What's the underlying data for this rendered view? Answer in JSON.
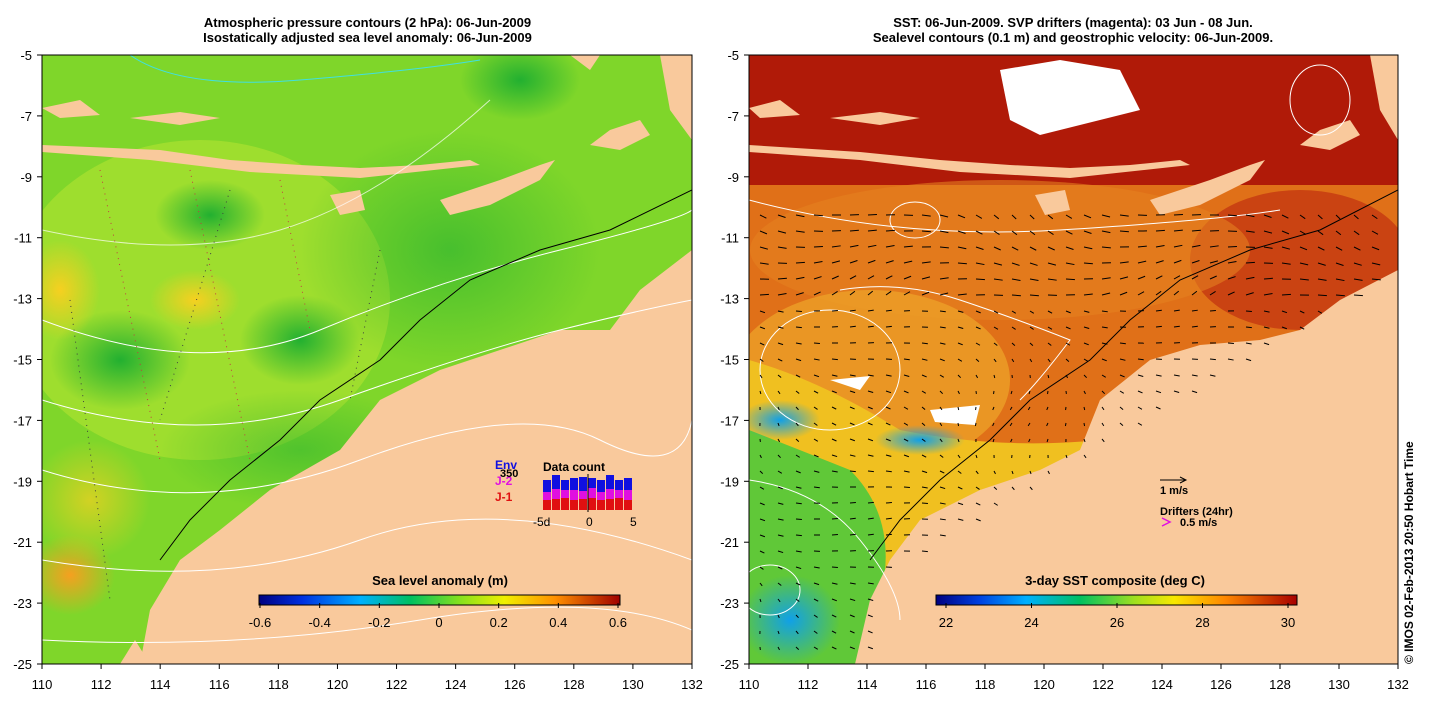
{
  "left_panel": {
    "title_line1": "Atmospheric pressure contours (2 hPa): 06-Jun-2009",
    "title_line2": "Isostatically adjusted sea level anomaly: 06-Jun-2009",
    "colorbar_label": "Sea level anomaly (m)",
    "colorbar_ticks": [
      "-0.6",
      "-0.4",
      "-0.2",
      "0",
      "0.2",
      "0.4",
      "0.6"
    ],
    "inset": {
      "title": "Data count",
      "legend": [
        {
          "label": "Env",
          "color": "#1010e0"
        },
        {
          "label": "J-2",
          "color": "#e010e0"
        },
        {
          "label": "J-1",
          "color": "#e01010"
        }
      ],
      "count_label": "350",
      "x_ticks": [
        "-5d",
        "0",
        "5"
      ]
    }
  },
  "right_panel": {
    "title_line1": "SST: 06-Jun-2009. SVP drifters (magenta): 03 Jun - 08 Jun.",
    "title_line2": "Sealevel contours (0.1 m) and geostrophic velocity: 06-Jun-2009.",
    "colorbar_label": "3-day SST composite (deg C)",
    "colorbar_ticks": [
      "22",
      "24",
      "26",
      "28",
      "30"
    ],
    "velocity_scale_label": "1 m/s",
    "drifters_label": "Drifters (24hr)",
    "drifters_scale_label": "0.5 m/s"
  },
  "axes": {
    "x_ticks": [
      "110",
      "112",
      "114",
      "116",
      "118",
      "120",
      "122",
      "124",
      "126",
      "128",
      "130",
      "132"
    ],
    "y_ticks": [
      "-5",
      "-7",
      "-9",
      "-11",
      "-13",
      "-15",
      "-17",
      "-19",
      "-21",
      "-23",
      "-25"
    ]
  },
  "credit": "© IMOS 02-Feb-2013 20:50 Hobart Time",
  "colors": {
    "land": "#f9c99c",
    "ocean_green": "#55cc22",
    "ocean_lime": "#99e030",
    "sst_red": "#b81c08",
    "sst_orange": "#e66a10"
  }
}
